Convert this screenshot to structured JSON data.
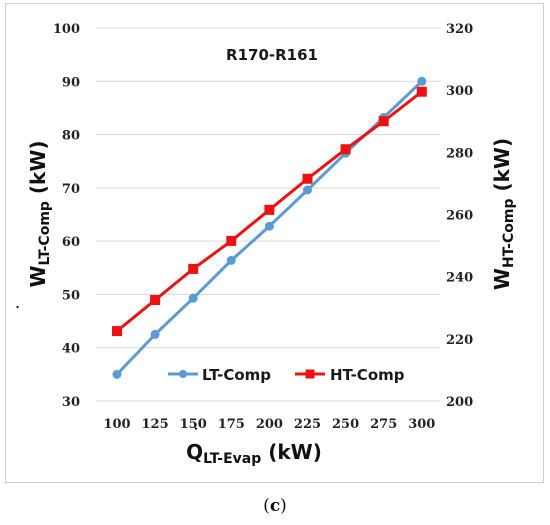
{
  "caption": {
    "open": "(",
    "letter": "c",
    "close": ")"
  },
  "chart_data": {
    "type": "line",
    "title": "R170-R161",
    "x": [
      100,
      125,
      150,
      175,
      200,
      225,
      250,
      275,
      300
    ],
    "x_ticks": [
      "100",
      "125",
      "150",
      "175",
      "200",
      "225",
      "250",
      "275",
      "300"
    ],
    "xlabel": {
      "main": "Q",
      "sub": "LT-Evap",
      "unit": " (kW)"
    },
    "ylabel_left": {
      "main": "W",
      "sub": "LT-Comp",
      "unit": " (kW)"
    },
    "ylabel_right": {
      "main": "W",
      "sub": "HT-Comp",
      "unit": " (kW)"
    },
    "ylim_left": [
      30,
      100
    ],
    "ylim_right": [
      200,
      320
    ],
    "yticks_left": [
      30,
      40,
      50,
      60,
      70,
      80,
      90,
      100
    ],
    "yticks_right": [
      200,
      220,
      240,
      260,
      280,
      300,
      320
    ],
    "grid": true,
    "legend_position": "bottom-center",
    "series": [
      {
        "name": "LT-Comp",
        "axis": "left",
        "color": "#5b9bd5",
        "marker": "circle",
        "values": [
          35.0,
          42.5,
          49.3,
          56.4,
          62.8,
          69.6,
          76.5,
          83.2,
          90.0
        ]
      },
      {
        "name": "HT-Comp",
        "axis": "right",
        "color": "#ee1111",
        "marker": "square",
        "values": [
          222.5,
          232.5,
          242.5,
          251.5,
          261.5,
          271.5,
          281.0,
          290.0,
          299.5
        ]
      }
    ]
  }
}
